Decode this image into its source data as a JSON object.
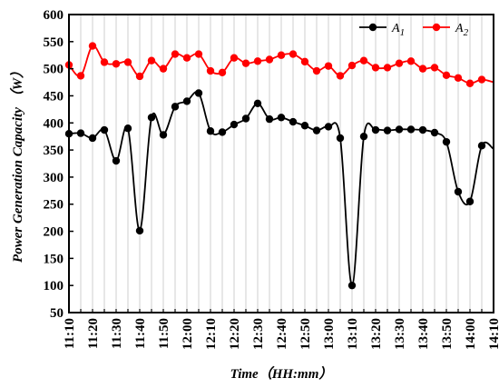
{
  "chart_data": {
    "type": "line",
    "xlabel": "Time（HH:mm）",
    "ylabel": "Power Generation Capacity （W）",
    "ylim": [
      50,
      600
    ],
    "yticks": [
      50,
      100,
      150,
      200,
      250,
      300,
      350,
      400,
      450,
      500,
      550,
      600
    ],
    "x_range": [
      "11:10",
      "14:10"
    ],
    "x_interval_minutes": 5,
    "xtick_labels": [
      "11:10",
      "11:20",
      "11:30",
      "11:40",
      "11:50",
      "12:00",
      "12:10",
      "12:20",
      "12:30",
      "12:40",
      "12:50",
      "13:00",
      "13:10",
      "13:20",
      "13:30",
      "13:40",
      "13:50",
      "14:00",
      "14:10"
    ],
    "grid": "vertical",
    "legend_position": "top-right",
    "series": [
      {
        "name": "A",
        "subscript": "1",
        "color": "#000000",
        "values": [
          380,
          381,
          372,
          387,
          330,
          390,
          201,
          410,
          378,
          430,
          440,
          455,
          385,
          383,
          397,
          408,
          436,
          407,
          410,
          402,
          395,
          386,
          393,
          372,
          100,
          375,
          387,
          386,
          388,
          388,
          387,
          382,
          365,
          273,
          255,
          358,
          352
        ]
      },
      {
        "name": "A",
        "subscript": "2",
        "color": "#ff0000",
        "values": [
          507,
          487,
          542,
          512,
          509,
          512,
          486,
          515,
          500,
          527,
          520,
          527,
          496,
          493,
          520,
          510,
          514,
          517,
          525,
          527,
          513,
          496,
          505,
          487,
          506,
          515,
          502,
          502,
          510,
          514,
          500,
          502,
          488,
          483,
          473,
          480,
          475
        ]
      }
    ]
  }
}
